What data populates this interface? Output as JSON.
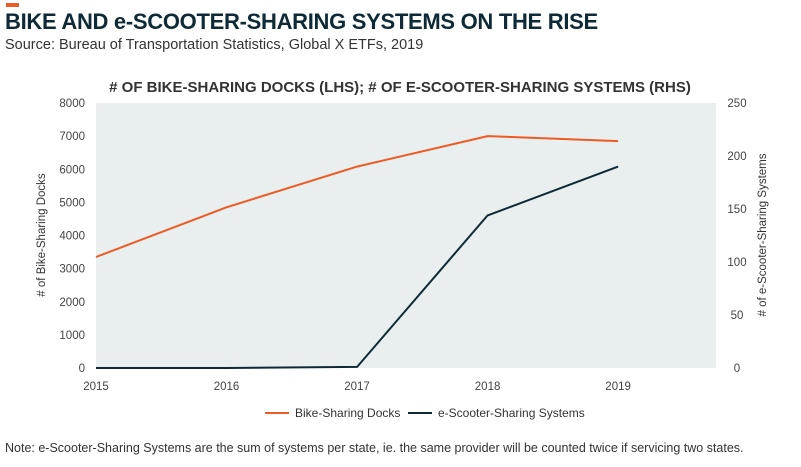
{
  "header": {
    "title": "BIKE AND e-SCOOTER-SHARING SYSTEMS ON THE RISE",
    "source": "Source: Bureau of Transportation Statistics, Global X ETFs, 2019",
    "accent_color": "#ee5a24"
  },
  "footer": {
    "note": "Note: e-Scooter-Sharing Systems are the sum of systems per state, ie. the same provider will be counted twice if servicing two states."
  },
  "chart_data": {
    "type": "line",
    "title": "# OF BIKE-SHARING DOCKS (LHS); # OF E-SCOOTER-SHARING SYSTEMS (RHS)",
    "x": [
      2015,
      2016,
      2017,
      2018,
      2019
    ],
    "x_ticks": [
      "2015",
      "2016",
      "2017",
      "2018",
      "2019"
    ],
    "y_left": {
      "label": "# of Bike-Sharing Docks",
      "range": [
        0,
        8000
      ],
      "ticks": [
        "0",
        "1000",
        "2000",
        "3000",
        "4000",
        "5000",
        "6000",
        "7000",
        "8000"
      ]
    },
    "y_right": {
      "label": "# of e-Scooter-Sharing Systems",
      "range": [
        0,
        250
      ],
      "ticks": [
        "0",
        "50",
        "100",
        "150",
        "200",
        "250"
      ]
    },
    "series": [
      {
        "name": "Bike-Sharing Docks",
        "axis": "left",
        "color": "#ee5a24",
        "values": [
          3350,
          4850,
          6080,
          7000,
          6850
        ]
      },
      {
        "name": "e-Scooter-Sharing Systems",
        "axis": "right",
        "color": "#0e2a36",
        "values": [
          0,
          0,
          1,
          144,
          190
        ]
      }
    ],
    "plot_background": "#e9efef",
    "grid": false,
    "legend_position": "bottom"
  }
}
